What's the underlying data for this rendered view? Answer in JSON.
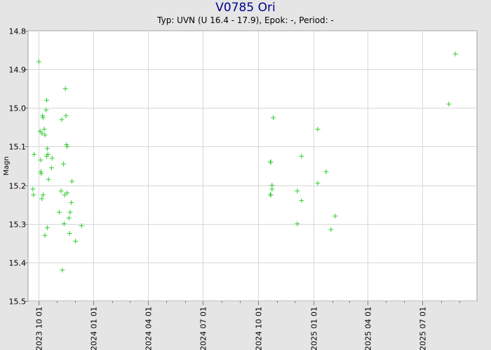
{
  "chart_data": {
    "type": "scatter",
    "title": "V0785 Ori",
    "subtitle": "Typ: UVN (U 16.4 - 17.9), Epok: -, Period: -",
    "ylabel": "Magn",
    "xlabel": "",
    "y_inverted": true,
    "ylim": [
      14.8,
      15.5
    ],
    "y_ticks": [
      "14.8",
      "14.9",
      "15.0",
      "15.1",
      "15.2",
      "15.3",
      "15.4",
      "15.5"
    ],
    "xlim": [
      "2023-09-14",
      "2025-09-30"
    ],
    "x_ticks": [
      "2023 10 01",
      "2024 01 01",
      "2024 04 01",
      "2024 07 01",
      "2024 10 01",
      "2025 01 01",
      "2025 04 01",
      "2025 07 01"
    ],
    "grid": true,
    "colors": {
      "points": "#33cc33",
      "plot_bg": "#ffffff",
      "page_bg": "#e5e5e5",
      "title": "#00008b"
    },
    "series": [
      {
        "marker": "+",
        "points": [
          {
            "x": "2023-09-22",
            "y": 15.21
          },
          {
            "x": "2023-09-23",
            "y": 15.225
          },
          {
            "x": "2023-09-24",
            "y": 15.12
          },
          {
            "x": "2023-10-02",
            "y": 14.88
          },
          {
            "x": "2023-10-04",
            "y": 15.06
          },
          {
            "x": "2023-10-05",
            "y": 15.135
          },
          {
            "x": "2023-10-05",
            "y": 15.165
          },
          {
            "x": "2023-10-06",
            "y": 15.17
          },
          {
            "x": "2023-10-07",
            "y": 15.065
          },
          {
            "x": "2023-10-07",
            "y": 15.235
          },
          {
            "x": "2023-10-08",
            "y": 15.02
          },
          {
            "x": "2023-10-09",
            "y": 15.025
          },
          {
            "x": "2023-10-09",
            "y": 15.225
          },
          {
            "x": "2023-10-11",
            "y": 15.055
          },
          {
            "x": "2023-10-12",
            "y": 15.07
          },
          {
            "x": "2023-10-12",
            "y": 15.33
          },
          {
            "x": "2023-10-14",
            "y": 15.005
          },
          {
            "x": "2023-10-15",
            "y": 14.98
          },
          {
            "x": "2023-10-15",
            "y": 15.125
          },
          {
            "x": "2023-10-16",
            "y": 15.105
          },
          {
            "x": "2023-10-16",
            "y": 15.31
          },
          {
            "x": "2023-10-17",
            "y": 15.12
          },
          {
            "x": "2023-10-18",
            "y": 15.185
          },
          {
            "x": "2023-10-23",
            "y": 15.155
          },
          {
            "x": "2023-10-24",
            "y": 15.13
          },
          {
            "x": "2023-11-05",
            "y": 15.27
          },
          {
            "x": "2023-11-08",
            "y": 15.215
          },
          {
            "x": "2023-11-09",
            "y": 15.03
          },
          {
            "x": "2023-11-10",
            "y": 15.42
          },
          {
            "x": "2023-11-12",
            "y": 15.145
          },
          {
            "x": "2023-11-13",
            "y": 15.3
          },
          {
            "x": "2023-11-14",
            "y": 15.225
          },
          {
            "x": "2023-11-15",
            "y": 14.95
          },
          {
            "x": "2023-11-16",
            "y": 15.02
          },
          {
            "x": "2023-11-17",
            "y": 15.095
          },
          {
            "x": "2023-11-18",
            "y": 15.1
          },
          {
            "x": "2023-11-18",
            "y": 15.22
          },
          {
            "x": "2023-11-21",
            "y": 15.285
          },
          {
            "x": "2023-11-22",
            "y": 15.325
          },
          {
            "x": "2023-11-23",
            "y": 15.27
          },
          {
            "x": "2023-11-25",
            "y": 15.245
          },
          {
            "x": "2023-11-26",
            "y": 15.19
          },
          {
            "x": "2023-12-02",
            "y": 15.345
          },
          {
            "x": "2023-12-12",
            "y": 15.305
          },
          {
            "x": "2024-10-21",
            "y": 15.14
          },
          {
            "x": "2024-10-21",
            "y": 15.225
          },
          {
            "x": "2024-10-22",
            "y": 15.14
          },
          {
            "x": "2024-10-22",
            "y": 15.225
          },
          {
            "x": "2024-10-24",
            "y": 15.2
          },
          {
            "x": "2024-10-24",
            "y": 15.21
          },
          {
            "x": "2024-10-26",
            "y": 15.025
          },
          {
            "x": "2024-12-05",
            "y": 15.3
          },
          {
            "x": "2024-12-05",
            "y": 15.215
          },
          {
            "x": "2024-12-12",
            "y": 15.125
          },
          {
            "x": "2024-12-12",
            "y": 15.24
          },
          {
            "x": "2025-01-08",
            "y": 15.055
          },
          {
            "x": "2025-01-08",
            "y": 15.195
          },
          {
            "x": "2025-01-22",
            "y": 15.165
          },
          {
            "x": "2025-01-30",
            "y": 15.315
          },
          {
            "x": "2025-02-06",
            "y": 15.28
          },
          {
            "x": "2025-08-14",
            "y": 14.99
          },
          {
            "x": "2025-08-25",
            "y": 14.86
          }
        ]
      }
    ]
  }
}
